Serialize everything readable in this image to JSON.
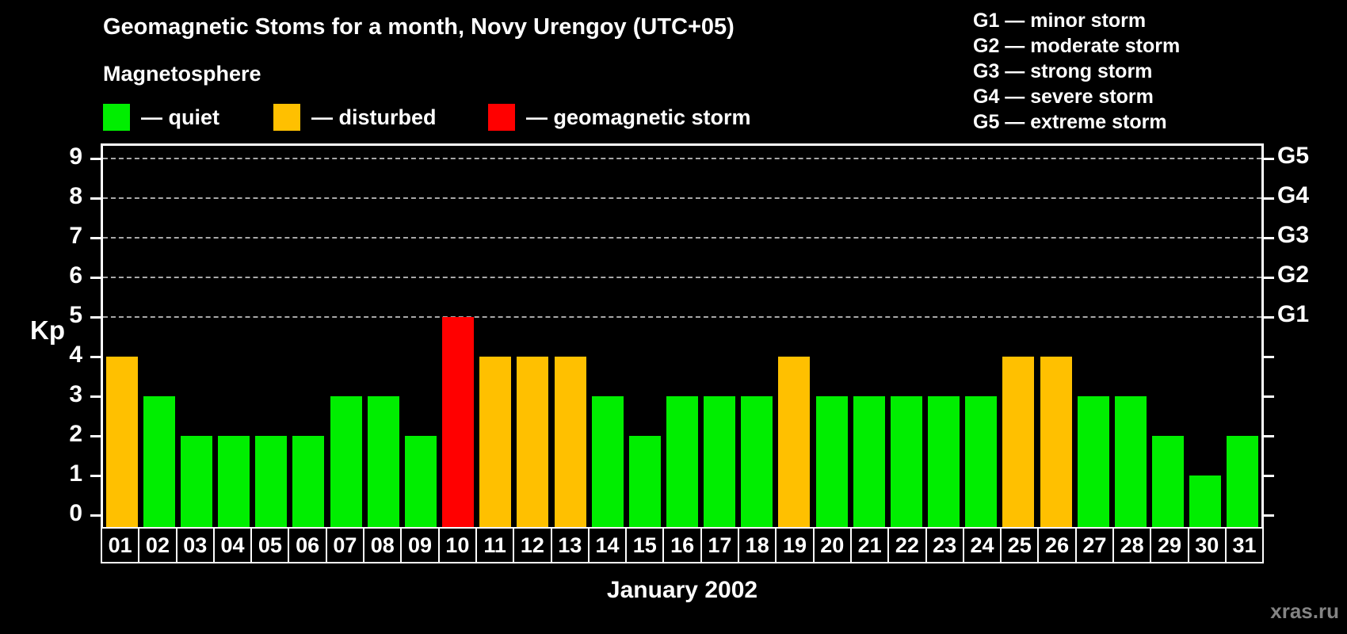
{
  "header": {
    "title": "Geomagnetic Stoms for a month, Novy Urengoy (UTC+05)",
    "subtitle": "Magnetosphere"
  },
  "legend": {
    "items": [
      {
        "key": "quiet",
        "label": "— quiet",
        "color": "#00ee00"
      },
      {
        "key": "disturbed",
        "label": "— disturbed",
        "color": "#ffc000"
      },
      {
        "key": "storm",
        "label": "— geomagnetic storm",
        "color": "#ff0000"
      }
    ]
  },
  "g_legend": [
    "G1 — minor storm",
    "G2 — moderate storm",
    "G3 — strong storm",
    "G4 — severe storm",
    "G5 — extreme storm"
  ],
  "watermark": "xras.ru",
  "chart_data": {
    "type": "bar",
    "title": "Geomagnetic Stoms for a month, Novy Urengoy (UTC+05)",
    "xlabel": "January 2002",
    "ylabel": "Kp",
    "ylim": [
      0,
      9
    ],
    "grid": "dashed horizontal lines at Kp 5-9 only",
    "legend_position": "top-left (magnetosphere states), top-right (G storm scale)",
    "y_ticks": [
      0,
      1,
      2,
      3,
      4,
      5,
      6,
      7,
      8,
      9
    ],
    "gridline_levels": [
      5,
      6,
      7,
      8,
      9
    ],
    "right_axis_ticks": [
      {
        "level": 5,
        "label": "G1"
      },
      {
        "level": 6,
        "label": "G2"
      },
      {
        "level": 7,
        "label": "G3"
      },
      {
        "level": 8,
        "label": "G4"
      },
      {
        "level": 9,
        "label": "G5"
      }
    ],
    "categories": [
      "01",
      "02",
      "03",
      "04",
      "05",
      "06",
      "07",
      "08",
      "09",
      "10",
      "11",
      "12",
      "13",
      "14",
      "15",
      "16",
      "17",
      "18",
      "19",
      "20",
      "21",
      "22",
      "23",
      "24",
      "25",
      "26",
      "27",
      "28",
      "29",
      "30",
      "31"
    ],
    "values": [
      4,
      3,
      2,
      2,
      2,
      2,
      3,
      3,
      2,
      5,
      4,
      4,
      4,
      3,
      2,
      3,
      3,
      3,
      4,
      3,
      3,
      3,
      3,
      3,
      4,
      4,
      3,
      3,
      2,
      1,
      2
    ],
    "statuses": [
      "disturbed",
      "quiet",
      "quiet",
      "quiet",
      "quiet",
      "quiet",
      "quiet",
      "quiet",
      "quiet",
      "storm",
      "disturbed",
      "disturbed",
      "disturbed",
      "quiet",
      "quiet",
      "quiet",
      "quiet",
      "quiet",
      "disturbed",
      "quiet",
      "quiet",
      "quiet",
      "quiet",
      "quiet",
      "disturbed",
      "disturbed",
      "quiet",
      "quiet",
      "quiet",
      "quiet",
      "quiet"
    ],
    "status_colors": {
      "quiet": "#00ee00",
      "disturbed": "#ffc000",
      "storm": "#ff0000"
    }
  }
}
